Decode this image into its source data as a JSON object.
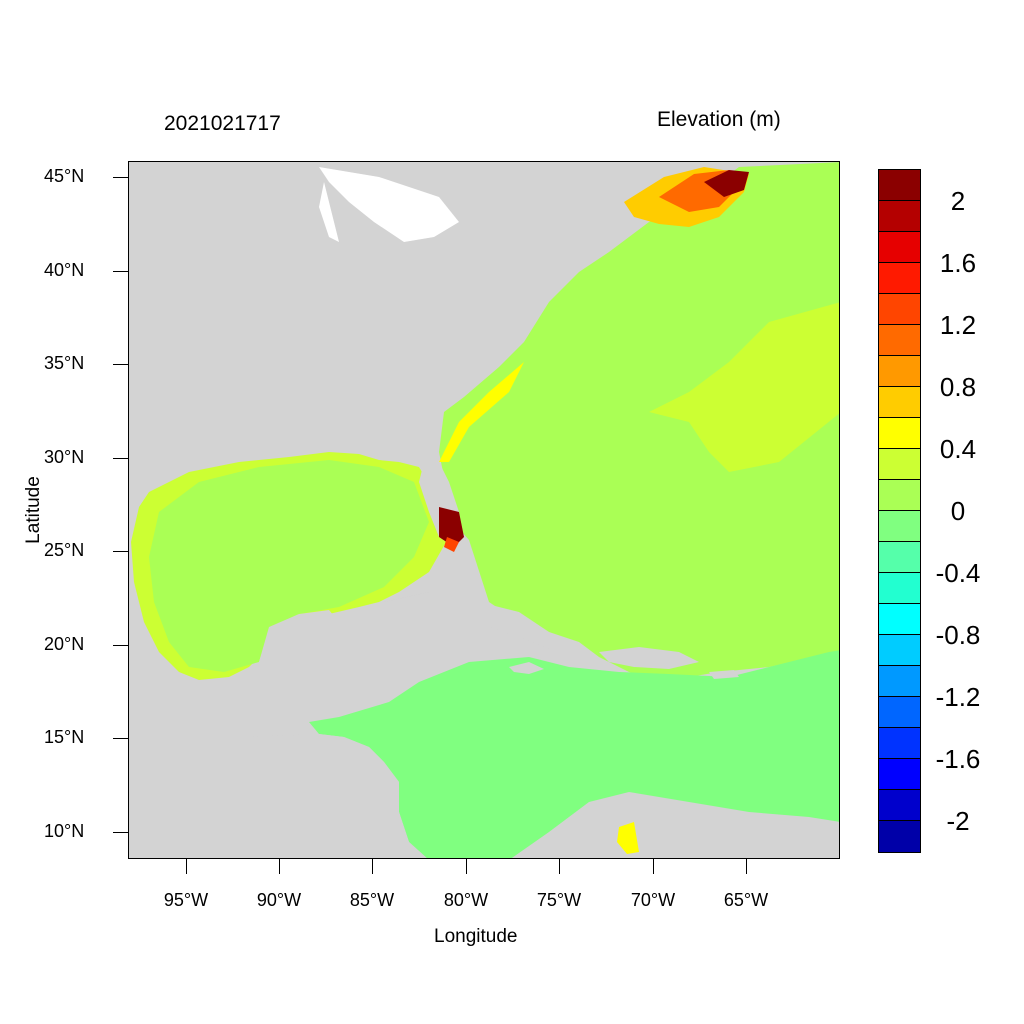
{
  "header": {
    "datetime": "2021021717",
    "variable": "Elevation (m)"
  },
  "axes": {
    "xlabel": "Longitude",
    "ylabel": "Latitude",
    "lat_ticks": [
      "45°N",
      "40°N",
      "35°N",
      "30°N",
      "25°N",
      "20°N",
      "15°N",
      "10°N"
    ],
    "lon_ticks": [
      "95°W",
      "90°W",
      "85°W",
      "80°W",
      "75°W",
      "70°W",
      "65°W"
    ]
  },
  "colorbar": {
    "colors": [
      "#8b0000",
      "#b40000",
      "#e60000",
      "#ff1a00",
      "#ff4500",
      "#ff6a00",
      "#ff9900",
      "#ffcc00",
      "#ffff00",
      "#ccff33",
      "#aaff55",
      "#80ff80",
      "#55ffaa",
      "#22ffd0",
      "#00ffff",
      "#00ccff",
      "#0099ff",
      "#0066ff",
      "#0033ff",
      "#0000ff",
      "#0000cc",
      "#0000a8"
    ],
    "labels": [
      "2",
      "1.6",
      "1.2",
      "0.8",
      "0.4",
      "0",
      "-0.4",
      "-0.8",
      "-1.2",
      "-1.6",
      "-2"
    ]
  },
  "map_colors": {
    "land": "#d3d3d3",
    "open_ocean": "#aaff55",
    "caribbean": "#80ff80",
    "gulf_coast": "#ccff33",
    "surge_high": "#8b0000",
    "gulf_of_maine": "#ff6a00"
  }
}
